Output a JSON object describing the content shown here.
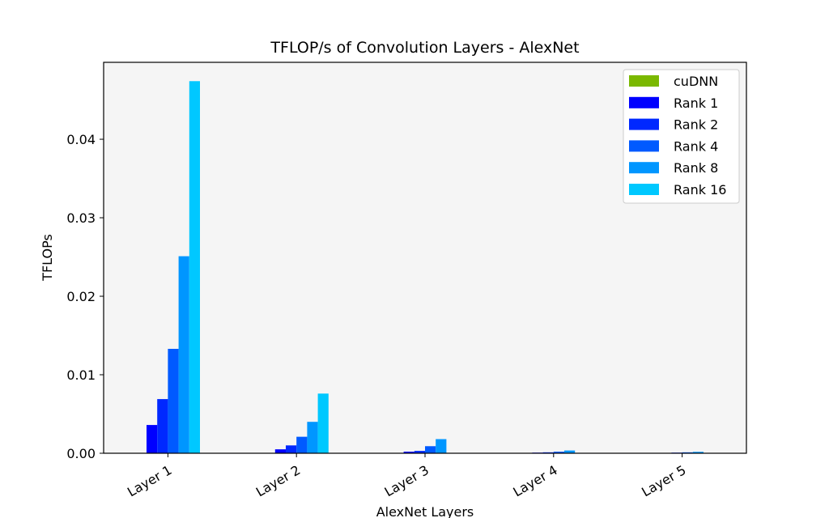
{
  "chart_data": {
    "type": "bar",
    "title": "TFLOP/s of Convolution Layers - AlexNet",
    "xlabel": "AlexNet Layers",
    "ylabel": "TFLOPs",
    "categories": [
      "Layer 1",
      "Layer 2",
      "Layer 3",
      "Layer 4",
      "Layer 5"
    ],
    "ylim": [
      0,
      0.0498
    ],
    "yticks": [
      0.0,
      0.01,
      0.02,
      0.03,
      0.04
    ],
    "ytick_labels": [
      "0.00",
      "0.01",
      "0.02",
      "0.03",
      "0.04"
    ],
    "legend_position": "top-right",
    "series": [
      {
        "name": "cuDNN",
        "color": "#7ab800",
        "values": [
          0,
          0,
          0,
          0,
          0
        ]
      },
      {
        "name": "Rank 1",
        "color": "#0000ff",
        "values": [
          0.0036,
          0.0005,
          0.0002,
          8e-05,
          5e-05
        ]
      },
      {
        "name": "Rank 2",
        "color": "#0028ff",
        "values": [
          0.0069,
          0.001,
          0.0003,
          0.00012,
          8e-05
        ]
      },
      {
        "name": "Rank 4",
        "color": "#005aff",
        "values": [
          0.0133,
          0.0021,
          0.0009,
          0.0002,
          0.00012
        ]
      },
      {
        "name": "Rank 8",
        "color": "#0096ff",
        "values": [
          0.0251,
          0.004,
          0.0018,
          0.00035,
          0.00018
        ]
      },
      {
        "name": "Rank 16",
        "color": "#00c8ff",
        "values": [
          0.0474,
          0.0076,
          0.0,
          0.0,
          0.0
        ]
      }
    ],
    "plot_background": "#f5f5f5",
    "grid": false
  }
}
